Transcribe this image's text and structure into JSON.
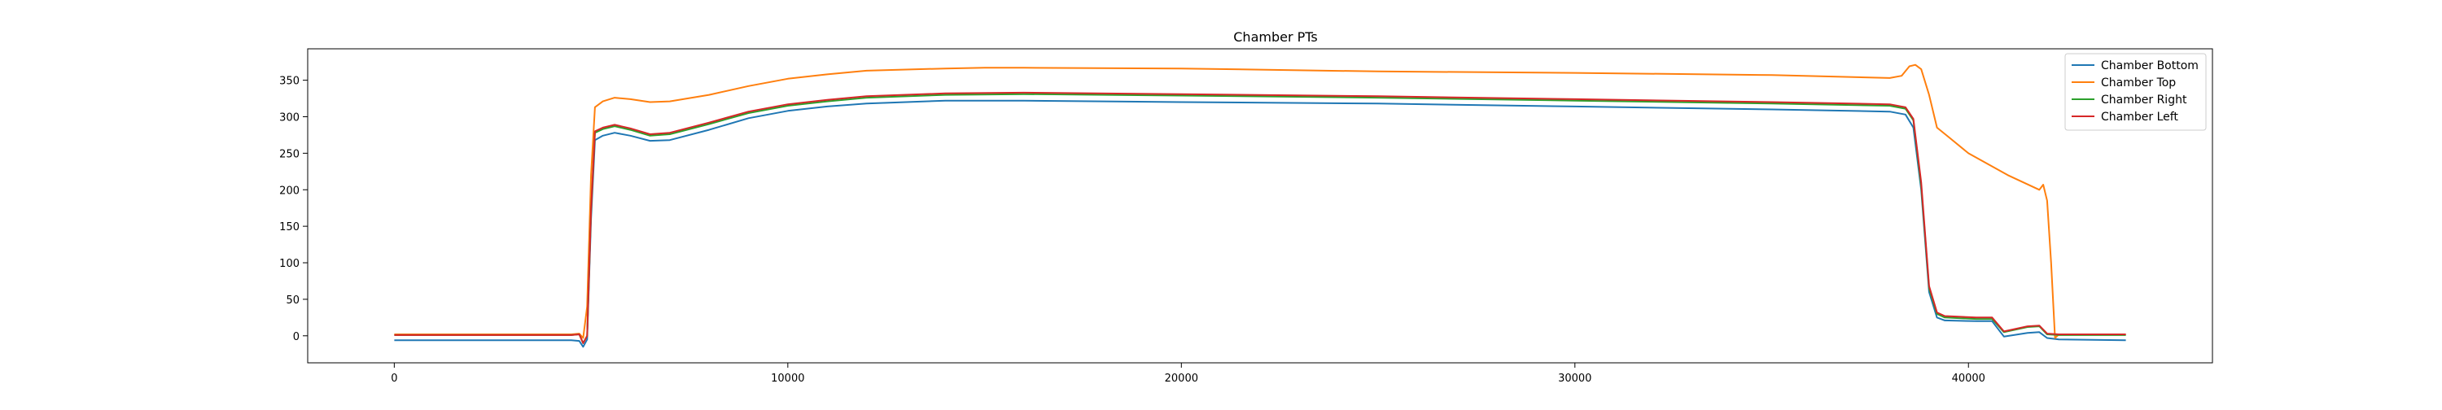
{
  "chart_data": {
    "type": "line",
    "title": "Chamber PTs",
    "xlabel": "",
    "ylabel": "",
    "xlim": [
      -2200,
      46200
    ],
    "ylim": [
      -37,
      393
    ],
    "xticks": [
      0,
      10000,
      20000,
      30000,
      40000
    ],
    "yticks": [
      0,
      50,
      100,
      150,
      200,
      250,
      300,
      350
    ],
    "grid": false,
    "legend_position": "top-right",
    "series": [
      {
        "name": "Chamber Bottom",
        "color": "#1f77b4",
        "points": [
          [
            0,
            -6
          ],
          [
            4500,
            -6
          ],
          [
            4700,
            -7
          ],
          [
            4800,
            -15
          ],
          [
            4900,
            -5
          ],
          [
            5000,
            160
          ],
          [
            5100,
            268
          ],
          [
            5300,
            274
          ],
          [
            5600,
            278
          ],
          [
            6000,
            274
          ],
          [
            6500,
            267
          ],
          [
            7000,
            268
          ],
          [
            8000,
            282
          ],
          [
            9000,
            298
          ],
          [
            10000,
            308
          ],
          [
            11000,
            314
          ],
          [
            12000,
            318
          ],
          [
            14000,
            322
          ],
          [
            16000,
            322
          ],
          [
            20000,
            320
          ],
          [
            25000,
            318
          ],
          [
            30000,
            314
          ],
          [
            35000,
            310
          ],
          [
            38000,
            307
          ],
          [
            38400,
            303
          ],
          [
            38600,
            285
          ],
          [
            38800,
            200
          ],
          [
            39000,
            60
          ],
          [
            39200,
            25
          ],
          [
            39400,
            21
          ],
          [
            40200,
            20
          ],
          [
            40600,
            20
          ],
          [
            40900,
            -1
          ],
          [
            41500,
            4
          ],
          [
            41800,
            5
          ],
          [
            42000,
            -3
          ],
          [
            42300,
            -5
          ],
          [
            44000,
            -6
          ]
        ]
      },
      {
        "name": "Chamber Top",
        "color": "#ff7f0e",
        "points": [
          [
            0,
            2
          ],
          [
            4500,
            2
          ],
          [
            4700,
            3
          ],
          [
            4800,
            -3
          ],
          [
            4900,
            40
          ],
          [
            5000,
            220
          ],
          [
            5100,
            313
          ],
          [
            5300,
            321
          ],
          [
            5600,
            326
          ],
          [
            6000,
            324
          ],
          [
            6500,
            320
          ],
          [
            7000,
            321
          ],
          [
            8000,
            330
          ],
          [
            9000,
            342
          ],
          [
            10000,
            352
          ],
          [
            11000,
            358
          ],
          [
            12000,
            363
          ],
          [
            14000,
            366
          ],
          [
            15000,
            367
          ],
          [
            16000,
            367
          ],
          [
            20000,
            366
          ],
          [
            25000,
            362
          ],
          [
            30000,
            360
          ],
          [
            35000,
            357
          ],
          [
            38000,
            353
          ],
          [
            38300,
            356
          ],
          [
            38500,
            369
          ],
          [
            38650,
            371
          ],
          [
            38800,
            365
          ],
          [
            39000,
            330
          ],
          [
            39200,
            285
          ],
          [
            39500,
            272
          ],
          [
            40000,
            250
          ],
          [
            41000,
            220
          ],
          [
            41800,
            200
          ],
          [
            41900,
            207
          ],
          [
            42000,
            185
          ],
          [
            42100,
            100
          ],
          [
            42200,
            -3
          ],
          [
            42300,
            2
          ],
          [
            44000,
            2
          ]
        ]
      },
      {
        "name": "Chamber Right",
        "color": "#2ca02c",
        "points": [
          [
            0,
            1
          ],
          [
            4500,
            1
          ],
          [
            4700,
            2
          ],
          [
            4800,
            -10
          ],
          [
            4900,
            0
          ],
          [
            5000,
            170
          ],
          [
            5100,
            278
          ],
          [
            5300,
            283
          ],
          [
            5600,
            287
          ],
          [
            6000,
            282
          ],
          [
            6500,
            274
          ],
          [
            7000,
            276
          ],
          [
            8000,
            290
          ],
          [
            9000,
            305
          ],
          [
            10000,
            315
          ],
          [
            11000,
            321
          ],
          [
            12000,
            326
          ],
          [
            14000,
            330
          ],
          [
            16000,
            331
          ],
          [
            20000,
            329
          ],
          [
            25000,
            326
          ],
          [
            30000,
            322
          ],
          [
            35000,
            318
          ],
          [
            38000,
            315
          ],
          [
            38400,
            311
          ],
          [
            38600,
            295
          ],
          [
            38800,
            205
          ],
          [
            39000,
            65
          ],
          [
            39200,
            30
          ],
          [
            39400,
            25
          ],
          [
            40200,
            23
          ],
          [
            40600,
            23
          ],
          [
            40900,
            5
          ],
          [
            41500,
            12
          ],
          [
            41800,
            13
          ],
          [
            42000,
            2
          ],
          [
            42300,
            1
          ],
          [
            44000,
            1
          ]
        ]
      },
      {
        "name": "Chamber Left",
        "color": "#d62728",
        "points": [
          [
            0,
            1
          ],
          [
            4500,
            1
          ],
          [
            4700,
            2
          ],
          [
            4800,
            -10
          ],
          [
            4900,
            0
          ],
          [
            5000,
            172
          ],
          [
            5100,
            280
          ],
          [
            5300,
            285
          ],
          [
            5600,
            289
          ],
          [
            6000,
            284
          ],
          [
            6500,
            276
          ],
          [
            7000,
            278
          ],
          [
            8000,
            292
          ],
          [
            9000,
            307
          ],
          [
            10000,
            317
          ],
          [
            11000,
            323
          ],
          [
            12000,
            328
          ],
          [
            14000,
            332
          ],
          [
            16000,
            333
          ],
          [
            20000,
            331
          ],
          [
            25000,
            328
          ],
          [
            30000,
            324
          ],
          [
            35000,
            320
          ],
          [
            38000,
            317
          ],
          [
            38400,
            313
          ],
          [
            38600,
            297
          ],
          [
            38800,
            210
          ],
          [
            39000,
            68
          ],
          [
            39200,
            32
          ],
          [
            39400,
            27
          ],
          [
            40200,
            25
          ],
          [
            40600,
            25
          ],
          [
            40900,
            6
          ],
          [
            41500,
            13
          ],
          [
            41800,
            14
          ],
          [
            42000,
            3
          ],
          [
            42300,
            2
          ],
          [
            44000,
            2
          ]
        ]
      }
    ]
  }
}
